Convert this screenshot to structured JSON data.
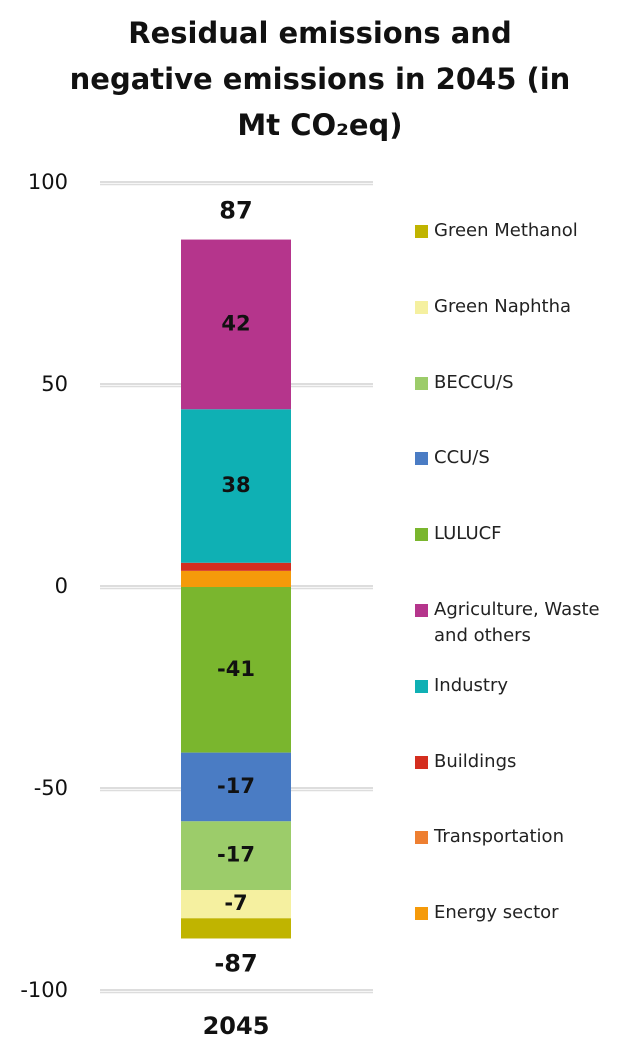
{
  "chart_data": {
    "type": "stacked-bar",
    "title": "Residual emissions and negative emissions in 2045 (in Mt CO₂eq)",
    "categories": [
      "2045"
    ],
    "totals": [
      87,
      -87
    ],
    "ylim": [
      -100,
      100
    ],
    "yticks": [
      -100,
      -50,
      0,
      50,
      100
    ],
    "grid": true,
    "series": [
      {
        "name": "Energy sector",
        "color": "#f59a0a",
        "values": [
          4
        ]
      },
      {
        "name": "Transportation",
        "color": "#ee7f31",
        "values": [
          0
        ]
      },
      {
        "name": "Buildings",
        "color": "#d42e1f",
        "values": [
          2
        ]
      },
      {
        "name": "Industry",
        "color": "#0fb0b4",
        "values": [
          38
        ],
        "data_labels": true
      },
      {
        "name": "Agriculture, Waste and others",
        "color": "#b5358c",
        "values": [
          42
        ],
        "data_labels": true
      },
      {
        "name": "LULUCF",
        "color": "#7ab62e",
        "values": [
          -41
        ],
        "data_labels": true
      },
      {
        "name": "CCU/S",
        "color": "#4a7cc4",
        "values": [
          -17
        ],
        "data_labels": true
      },
      {
        "name": "BECCU/S",
        "color": "#9ccc6a",
        "values": [
          -17
        ],
        "data_labels": true
      },
      {
        "name": "Green Naphtha",
        "color": "#f5f0a0",
        "values": [
          -7
        ],
        "data_labels": true
      },
      {
        "name": "Green Methanol",
        "color": "#c0b400",
        "values": [
          -5
        ]
      }
    ]
  }
}
